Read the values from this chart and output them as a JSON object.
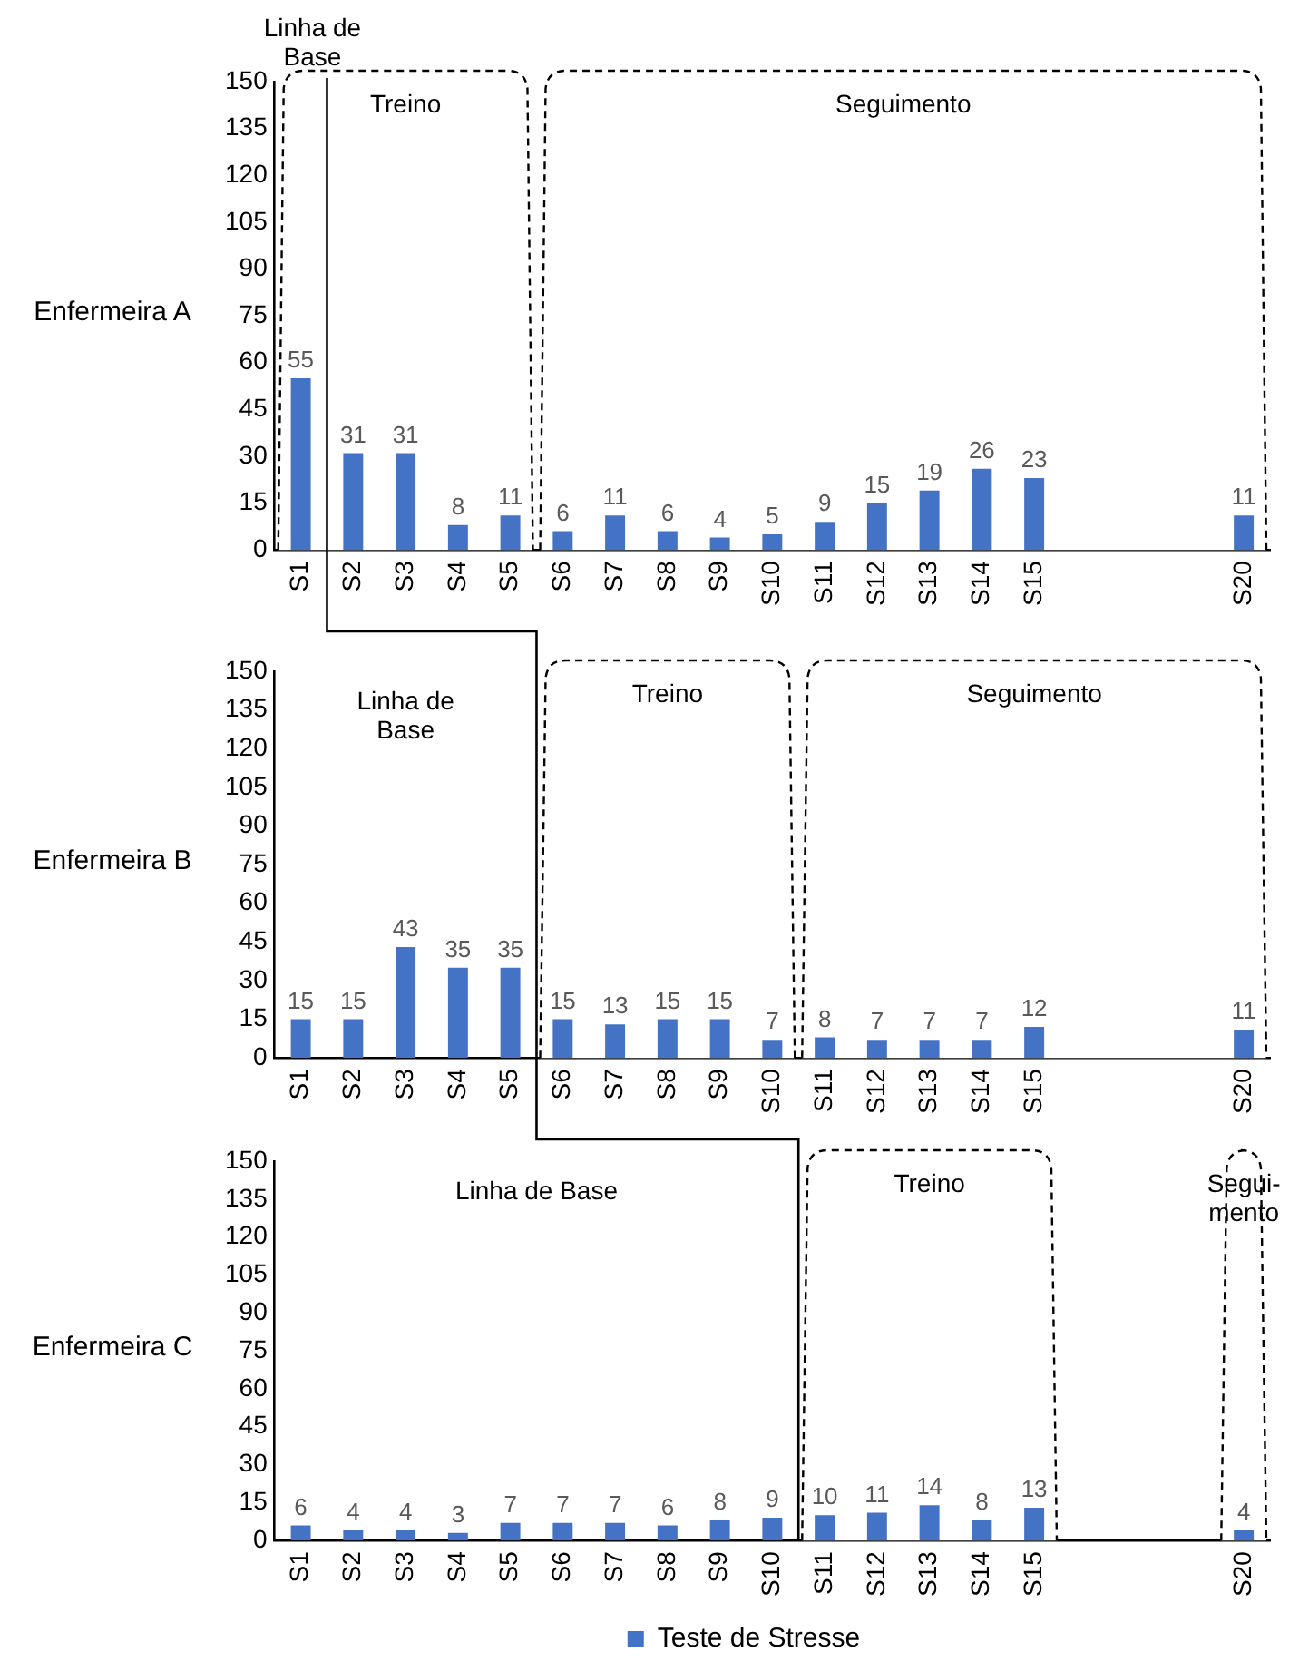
{
  "chart_data": [
    {
      "type": "bar",
      "ylabel": "Enfermeira A",
      "categories": [
        "S1",
        "S2",
        "S3",
        "S4",
        "S5",
        "S6",
        "S7",
        "S8",
        "S9",
        "S10",
        "S11",
        "S12",
        "S13",
        "S14",
        "S15",
        null,
        null,
        null,
        "S20"
      ],
      "values": [
        55,
        31,
        31,
        8,
        11,
        6,
        11,
        6,
        4,
        5,
        9,
        15,
        19,
        26,
        23,
        null,
        null,
        null,
        11
      ],
      "color": "#4472c4",
      "ylim": [
        0,
        150
      ],
      "yticks": [
        0,
        15,
        30,
        45,
        60,
        75,
        90,
        105,
        120,
        135,
        150
      ],
      "data_labels": true,
      "annotations": [
        "Linha de Base"
      ],
      "bands": [
        {
          "axis": "x",
          "from": "S1",
          "to": "S5",
          "label": "Treino",
          "color": "#ffffff"
        },
        {
          "axis": "x",
          "from": "S6",
          "to": "S20",
          "label": "Seguimento",
          "color": "#ffffff"
        }
      ]
    },
    {
      "type": "bar",
      "ylabel": "Enfermeira B",
      "categories": [
        "S1",
        "S2",
        "S3",
        "S4",
        "S5",
        "S6",
        "S7",
        "S8",
        "S9",
        "S10",
        "S11",
        "S12",
        "S13",
        "S14",
        "S15",
        null,
        null,
        null,
        "S20"
      ],
      "values": [
        15,
        15,
        43,
        35,
        35,
        15,
        13,
        15,
        15,
        7,
        8,
        7,
        7,
        7,
        12,
        null,
        null,
        null,
        11
      ],
      "color": "#4472c4",
      "ylim": [
        0,
        150
      ],
      "yticks": [
        0,
        15,
        30,
        45,
        60,
        75,
        90,
        105,
        120,
        135,
        150
      ],
      "data_labels": true,
      "annotations": [
        "Linha de Base"
      ],
      "bands": [
        {
          "axis": "x",
          "from": "S6",
          "to": "S10",
          "label": "Treino",
          "color": "#ffffff"
        },
        {
          "axis": "x",
          "from": "S11",
          "to": "S20",
          "label": "Seguimento",
          "color": "#ffffff"
        }
      ]
    },
    {
      "type": "bar",
      "ylabel": "Enfermeira C",
      "categories": [
        "S1",
        "S2",
        "S3",
        "S4",
        "S5",
        "S6",
        "S7",
        "S8",
        "S9",
        "S10",
        "S11",
        "S12",
        "S13",
        "S14",
        "S15",
        null,
        null,
        null,
        "S20"
      ],
      "series": [
        {
          "name": "Teste de Stresse",
          "color": "#4472c4",
          "values": [
            6,
            4,
            4,
            3,
            7,
            7,
            7,
            6,
            8,
            9,
            10,
            11,
            14,
            8,
            13,
            null,
            null,
            null,
            4
          ]
        }
      ],
      "ylim": [
        0,
        150
      ],
      "yticks": [
        0,
        15,
        30,
        45,
        60,
        75,
        90,
        105,
        120,
        135,
        150
      ],
      "data_labels": true,
      "legend": "bottom",
      "annotations": [
        "Linha de Base"
      ],
      "bands": [
        {
          "axis": "x",
          "from": "S11",
          "to": "S15",
          "label": "Treino",
          "color": "#ffffff"
        },
        {
          "axis": "x",
          "from": "S20",
          "to": "S20",
          "label": "Segui-mento",
          "color": "#ffffff"
        }
      ]
    }
  ]
}
